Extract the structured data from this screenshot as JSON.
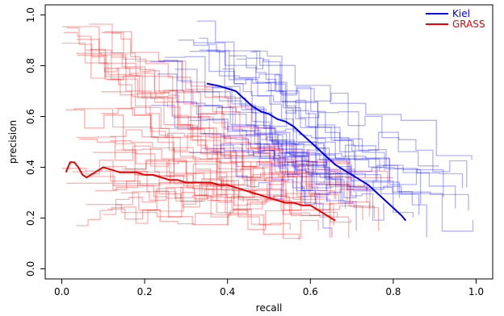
{
  "chart_data": {
    "type": "line",
    "xlabel": "recall",
    "ylabel": "precision",
    "xlim": [
      -0.04,
      1.04
    ],
    "ylim": [
      -0.04,
      1.04
    ],
    "x_ticks": [
      0.0,
      0.2,
      0.4,
      0.6,
      0.8,
      1.0
    ],
    "x_tick_labels": [
      "0.0",
      "0.2",
      "0.4",
      "0.6",
      "0.8",
      "1.0"
    ],
    "y_ticks": [
      0.0,
      0.2,
      0.4,
      0.6,
      0.8,
      1.0
    ],
    "y_tick_labels": [
      "0.0",
      "0.2",
      "0.4",
      "0.6",
      "0.8",
      "1.0"
    ],
    "grid": false,
    "legend_position": "top-right",
    "series": [
      {
        "name": "Kiel",
        "color": "#0000ee",
        "x": [
          0.35,
          0.38,
          0.42,
          0.44,
          0.46,
          0.48,
          0.5,
          0.52,
          0.54,
          0.56,
          0.58,
          0.6,
          0.62,
          0.64,
          0.66,
          0.68,
          0.7,
          0.72,
          0.74,
          0.76,
          0.78,
          0.8,
          0.82,
          0.83
        ],
        "values": [
          0.73,
          0.72,
          0.7,
          0.67,
          0.64,
          0.62,
          0.61,
          0.59,
          0.58,
          0.56,
          0.53,
          0.5,
          0.47,
          0.44,
          0.41,
          0.39,
          0.37,
          0.35,
          0.33,
          0.3,
          0.27,
          0.24,
          0.21,
          0.19
        ]
      },
      {
        "name": "GRASS",
        "color": "#ee0000",
        "x": [
          0.01,
          0.02,
          0.03,
          0.04,
          0.05,
          0.06,
          0.08,
          0.1,
          0.12,
          0.14,
          0.16,
          0.18,
          0.2,
          0.22,
          0.24,
          0.26,
          0.28,
          0.3,
          0.32,
          0.34,
          0.36,
          0.38,
          0.4,
          0.42,
          0.44,
          0.46,
          0.48,
          0.5,
          0.52,
          0.54,
          0.56,
          0.58,
          0.6,
          0.62,
          0.64,
          0.66
        ],
        "values": [
          0.38,
          0.42,
          0.42,
          0.4,
          0.37,
          0.36,
          0.38,
          0.4,
          0.39,
          0.38,
          0.38,
          0.38,
          0.37,
          0.37,
          0.36,
          0.35,
          0.35,
          0.34,
          0.34,
          0.34,
          0.34,
          0.33,
          0.33,
          0.32,
          0.31,
          0.3,
          0.29,
          0.28,
          0.27,
          0.26,
          0.26,
          0.25,
          0.25,
          0.23,
          0.21,
          0.19
        ]
      }
    ]
  }
}
